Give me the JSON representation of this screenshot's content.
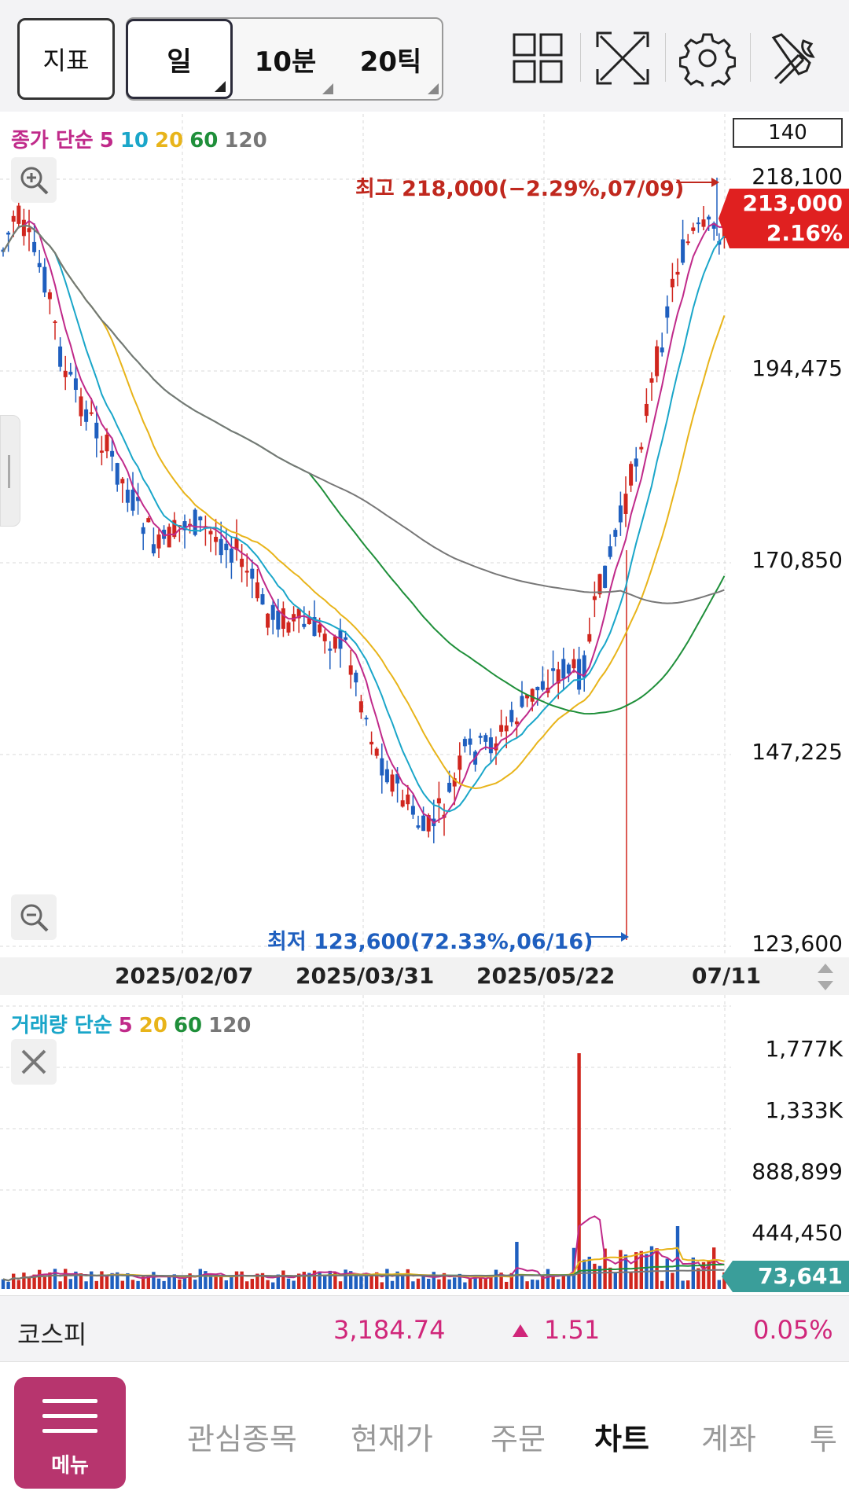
{
  "toolbar": {
    "indicator_label": "지표",
    "periods": [
      {
        "label": "일",
        "active": true
      },
      {
        "label": "10분",
        "active": false
      },
      {
        "label": "20틱",
        "active": false
      }
    ],
    "icons": [
      "layout-grid-icon",
      "fullscreen-icon",
      "settings-icon",
      "tools-icon"
    ]
  },
  "price_chart": {
    "legend": {
      "title": "종가 단순",
      "ma": [
        {
          "label": "5",
          "color": "#c02a8a"
        },
        {
          "label": "10",
          "color": "#1aa6c9"
        },
        {
          "label": "20",
          "color": "#e8b41a"
        },
        {
          "label": "60",
          "color": "#1f8f3a"
        },
        {
          "label": "120",
          "color": "#777777"
        }
      ],
      "title_color": "#c02a8a"
    },
    "count": "140",
    "y_labels": [
      "218,100",
      "194,475",
      "170,850",
      "147,225",
      "123,600"
    ],
    "current_price": "213,000",
    "current_change": "2.16%",
    "high_annotation": "최고 218,000(−2.29%,07/09)",
    "low_annotation": "최저 123,600(72.33%,06/16)",
    "x_labels": [
      "2025/02/07",
      "2025/03/31",
      "2025/05/22",
      "07/11"
    ],
    "up_color": "#d0261e",
    "down_color": "#1f5fbf"
  },
  "volume_chart": {
    "legend": {
      "title": "거래량 단순",
      "title_color": "#1aa6c9",
      "ma": [
        {
          "label": "5",
          "color": "#c02a8a"
        },
        {
          "label": "20",
          "color": "#e8b41a"
        },
        {
          "label": "60",
          "color": "#1f8f3a"
        },
        {
          "label": "120",
          "color": "#777777"
        }
      ]
    },
    "y_labels": [
      "1,777K",
      "1,333K",
      "888,899",
      "444,450"
    ],
    "current_volume": "73,641"
  },
  "index_bar": {
    "name": "코스피",
    "value": "3,184.74",
    "change": "1.51",
    "change_icon": "up-triangle-icon",
    "percent": "0.05%",
    "color": "#d0267a"
  },
  "bottom_nav": {
    "menu_label": "메뉴",
    "items": [
      {
        "label": "관심종목",
        "active": false
      },
      {
        "label": "현재가",
        "active": false
      },
      {
        "label": "주문",
        "active": false
      },
      {
        "label": "차트",
        "active": true
      },
      {
        "label": "계좌",
        "active": false
      },
      {
        "label": "투",
        "active": false
      }
    ]
  }
}
